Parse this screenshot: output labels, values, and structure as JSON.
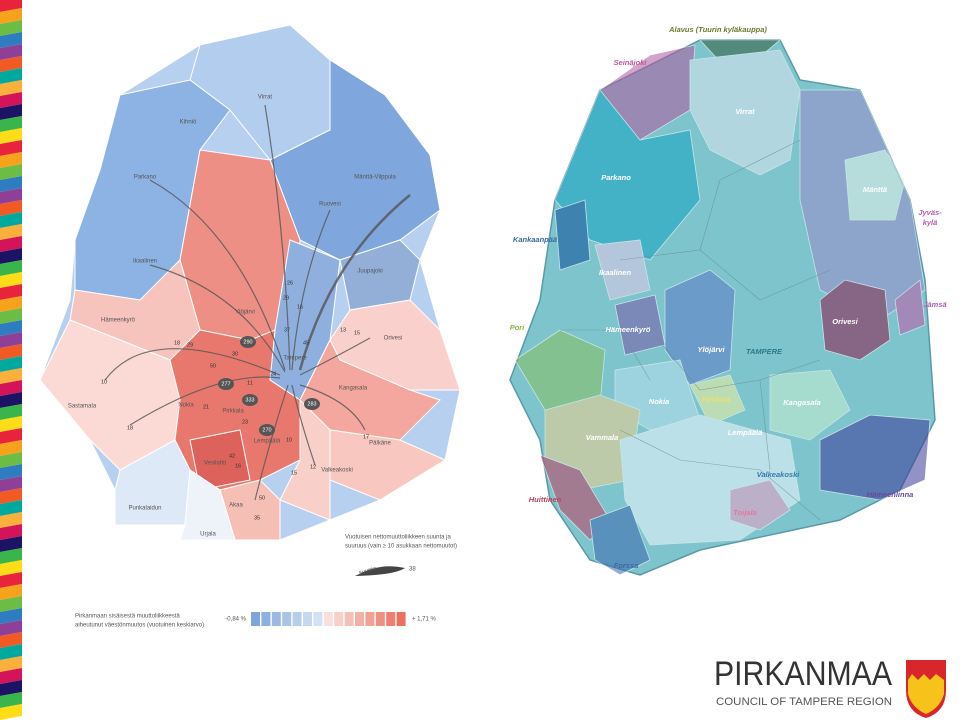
{
  "left_map": {
    "municipalities": [
      "Virrat",
      "Kihniö",
      "Parkano",
      "Ruovesi",
      "Mänttä-Vilppula",
      "Ikaalinen",
      "Juupajoki",
      "Hämeenkyrö",
      "Ylöjärvi",
      "Orivesi",
      "Tampere",
      "Kangasala",
      "Sastamala",
      "Nokia",
      "Pirkkala",
      "Lempäälä",
      "Vesilahti",
      "Pälkäne",
      "Akaa",
      "Valkeakoski",
      "Punkalaidun",
      "Urjala"
    ],
    "flows": [
      26,
      29,
      16,
      37,
      45,
      13,
      15,
      290,
      29,
      18,
      30,
      50,
      24,
      11,
      277,
      10,
      333,
      283,
      21,
      23,
      270,
      10,
      42,
      16,
      50,
      15,
      12,
      17,
      35,
      18
    ],
    "flow_legend": {
      "lines": [
        "Vuotuisen nettomuuttoliikkeen suunta ja",
        "suuruus (vain ≥ 10 asukkaan nettomuutot)"
      ],
      "direction": "suunta",
      "example": 38
    },
    "color_legend": {
      "lines": [
        "Pirkanmaan sisäisestä muuttoliikkeestä",
        "aiheutunut väestönmuutos (vuotuinen keskiarvo)"
      ],
      "min": "-0,84 %",
      "max": "+ 1,71 %"
    }
  },
  "right_map": {
    "labels": [
      "Alavus (Tuurin kyläkauppa)",
      "Seinäjoki",
      "Virrat",
      "Parkano",
      "Mänttä",
      "Jyväs-",
      "kylä",
      "Kankaanpää",
      "Ikaalinen",
      "Jämsä",
      "Pori",
      "Hämeenkyrö",
      "Orivesi",
      "Ylöjärvi",
      "TAMPERE",
      "Nokia",
      "Pirkkala",
      "Kangasala",
      "Vammala",
      "Lempäälä",
      "Valkeakoski",
      "Hämeenlinna",
      "Huittinen",
      "Toijala",
      "Forssa"
    ]
  },
  "logo": {
    "name": "PIRKANMAA",
    "subtitle": "COUNCIL OF TAMPERE REGION"
  }
}
